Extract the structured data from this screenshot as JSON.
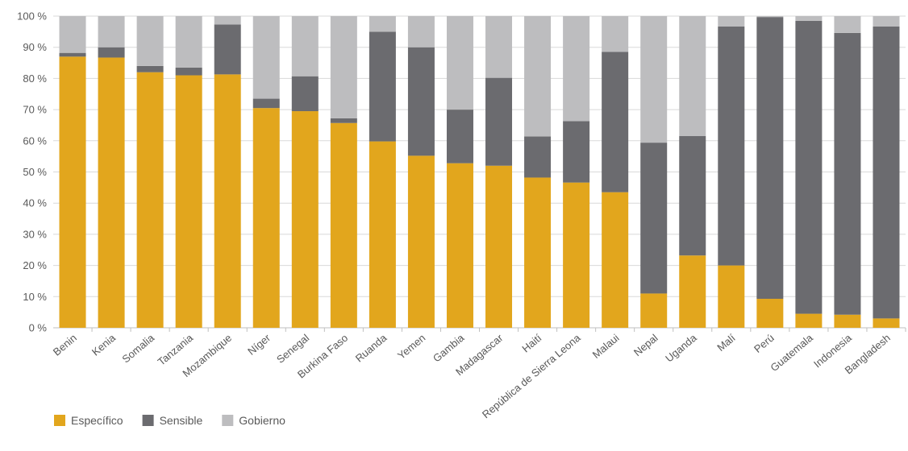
{
  "chart_data": {
    "type": "bar",
    "stacked": true,
    "title": "",
    "xlabel": "",
    "ylabel": "",
    "ylim": [
      0,
      100
    ],
    "yticks": [
      "0 %",
      "10 %",
      "20 %",
      "30 %",
      "40 %",
      "50 %",
      "60 %",
      "70 %",
      "80 %",
      "90 %",
      "100 %"
    ],
    "grid": true,
    "legend": "bottom-left",
    "categories": [
      "Benin",
      "Kenia",
      "Somalia",
      "Tanzania",
      "Mozambique",
      "Níger",
      "Senegal",
      "Burkina Faso",
      "Ruanda",
      "Yemen",
      "Gambia",
      "Madagascar",
      "Haití",
      "República de Sierra Leona",
      "Malaui",
      "Nepal",
      "Uganda",
      "Malí",
      "Perú",
      "Guatemala",
      "Indonesia",
      "Bangladesh"
    ],
    "series": [
      {
        "name": "Específico",
        "color": "#E2A61D",
        "values": [
          87,
          86.7,
          82,
          81,
          81.3,
          70.5,
          69.5,
          65.7,
          59.8,
          55.2,
          52.8,
          52,
          48.2,
          46.6,
          43.5,
          11,
          23.2,
          20,
          9.3,
          4.5,
          4.2,
          3
        ]
      },
      {
        "name": "Sensible",
        "color": "#6B6B6F",
        "values": [
          1.2,
          3.3,
          2,
          2.5,
          16,
          3,
          11.2,
          1.5,
          35.2,
          34.8,
          17.2,
          28.2,
          13.2,
          19.7,
          45,
          48.4,
          38.3,
          76.7,
          90.4,
          94,
          90.4,
          93.7
        ]
      },
      {
        "name": "Gobierno",
        "color": "#BDBDBF",
        "values": [
          11.8,
          10,
          16,
          16.5,
          2.7,
          26.5,
          19.3,
          32.8,
          5,
          10,
          30,
          19.8,
          38.6,
          33.7,
          11.5,
          40.6,
          38.5,
          3.3,
          0.3,
          1.5,
          5.4,
          3.3
        ]
      }
    ]
  }
}
